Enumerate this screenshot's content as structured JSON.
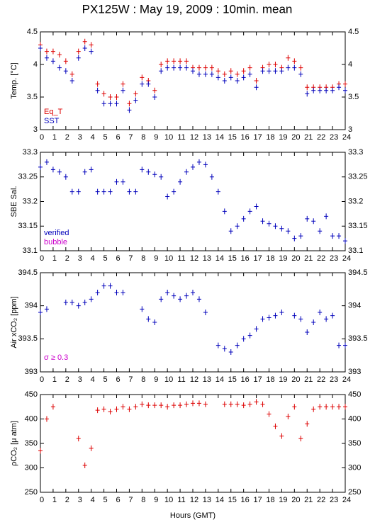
{
  "chart_data": [
    {
      "type": "scatter",
      "title": "PX125W : May 19, 2009 : 10min. mean",
      "ylabel": "Temp. [°C]",
      "xlim": [
        0,
        24
      ],
      "xticks": [
        0,
        1,
        2,
        3,
        4,
        5,
        6,
        7,
        8,
        9,
        10,
        11,
        12,
        13,
        14,
        15,
        16,
        17,
        18,
        19,
        20,
        21,
        22,
        23,
        24
      ],
      "ylim": [
        3,
        4.5
      ],
      "yticks": [
        3,
        3.5,
        4,
        4.5
      ],
      "x": [
        0,
        0.5,
        1,
        1.5,
        2,
        2.5,
        3,
        3.5,
        4,
        4.5,
        5,
        5.5,
        6,
        6.5,
        7,
        7.5,
        8,
        8.5,
        9,
        9.5,
        10,
        10.5,
        11,
        11.5,
        12,
        12.5,
        13,
        13.5,
        14,
        14.5,
        15,
        15.5,
        16,
        16.5,
        17,
        17.5,
        18,
        18.5,
        19,
        19.5,
        20,
        20.5,
        21,
        21.5,
        22,
        22.5,
        23,
        23.5,
        24
      ],
      "series": [
        {
          "name": "Eq_T",
          "color": "#dd0000",
          "values": [
            4.3,
            4.2,
            4.2,
            4.15,
            4.05,
            3.85,
            4.2,
            4.35,
            4.3,
            3.7,
            3.55,
            3.5,
            3.5,
            3.7,
            3.4,
            3.55,
            3.8,
            3.75,
            3.6,
            4.0,
            4.05,
            4.05,
            4.05,
            4.05,
            3.95,
            3.95,
            3.95,
            3.95,
            3.9,
            3.85,
            3.9,
            3.85,
            3.9,
            3.95,
            3.75,
            3.95,
            4.0,
            4.0,
            3.95,
            4.1,
            4.05,
            3.95,
            3.65,
            3.65,
            3.65,
            3.65,
            3.65,
            3.7,
            3.7
          ]
        },
        {
          "name": "SST",
          "color": "#0000bb",
          "values": [
            4.25,
            4.1,
            4.05,
            3.95,
            3.9,
            3.75,
            4.1,
            4.25,
            4.2,
            3.6,
            3.4,
            3.4,
            3.4,
            3.6,
            3.3,
            3.45,
            3.7,
            3.7,
            3.5,
            3.9,
            3.95,
            3.95,
            3.95,
            3.95,
            3.9,
            3.85,
            3.85,
            3.85,
            3.8,
            3.75,
            3.8,
            3.75,
            3.8,
            3.85,
            3.65,
            3.9,
            3.9,
            3.9,
            3.9,
            3.95,
            3.95,
            3.85,
            3.55,
            3.6,
            3.6,
            3.6,
            3.6,
            3.65,
            3.6
          ]
        }
      ]
    },
    {
      "type": "scatter",
      "ylabel": "SBE Sal.",
      "xlim": [
        0,
        24
      ],
      "xticks": [
        0,
        1,
        2,
        3,
        4,
        5,
        6,
        7,
        8,
        9,
        10,
        11,
        12,
        13,
        14,
        15,
        16,
        17,
        18,
        19,
        20,
        21,
        22,
        23,
        24
      ],
      "ylim": [
        33.1,
        33.3
      ],
      "yticks": [
        33.1,
        33.15,
        33.2,
        33.25,
        33.3
      ],
      "x": [
        0,
        0.5,
        1,
        1.5,
        2,
        2.5,
        3,
        3.5,
        4,
        4.5,
        5,
        5.5,
        6,
        6.5,
        7,
        7.5,
        8,
        8.5,
        9,
        9.5,
        10,
        10.5,
        11,
        11.5,
        12,
        12.5,
        13,
        13.5,
        14,
        14.5,
        15,
        15.5,
        16,
        16.5,
        17,
        17.5,
        18,
        18.5,
        19,
        19.5,
        20,
        20.5,
        21,
        21.5,
        22,
        22.5,
        23,
        23.5,
        24
      ],
      "series": [
        {
          "name": "verified",
          "color": "#0000bb",
          "values": [
            33.27,
            33.28,
            33.265,
            33.26,
            33.25,
            33.22,
            33.22,
            33.26,
            33.265,
            33.22,
            33.22,
            33.22,
            33.24,
            33.24,
            33.22,
            33.22,
            33.265,
            33.26,
            33.255,
            33.25,
            33.21,
            33.22,
            33.24,
            33.26,
            33.27,
            33.28,
            33.275,
            33.25,
            33.22,
            33.18,
            33.14,
            33.15,
            33.165,
            33.18,
            33.19,
            33.16,
            33.155,
            33.15,
            33.145,
            33.14,
            33.125,
            33.13,
            33.165,
            33.16,
            33.14,
            33.17,
            33.13,
            33.13,
            33.12
          ]
        },
        {
          "name": "bubble",
          "color": "#cc00cc",
          "values": [
            null,
            null,
            null,
            null,
            null,
            null,
            null,
            null,
            null,
            null,
            null,
            null,
            null,
            null,
            null,
            null,
            null,
            null,
            null,
            null,
            null,
            null,
            null,
            null,
            null,
            null,
            null,
            null,
            null,
            null,
            null,
            null,
            null,
            null,
            null,
            null,
            null,
            null,
            null,
            null,
            null,
            null,
            null,
            null,
            null,
            null,
            null,
            null,
            null
          ]
        }
      ]
    },
    {
      "type": "scatter",
      "ylabel": "Air xCO₂ [ppm]",
      "annotation": "σ ≥ 0.3",
      "annotation_color": "#cc00cc",
      "xlim": [
        0,
        24
      ],
      "xticks": [
        0,
        1,
        2,
        3,
        4,
        5,
        6,
        7,
        8,
        9,
        10,
        11,
        12,
        13,
        14,
        15,
        16,
        17,
        18,
        19,
        20,
        21,
        22,
        23,
        24
      ],
      "ylim": [
        393,
        394.5
      ],
      "yticks": [
        393,
        393.5,
        394,
        394.5
      ],
      "x": [
        0,
        0.5,
        1,
        1.5,
        2,
        2.5,
        3,
        3.5,
        4,
        4.5,
        5,
        5.5,
        6,
        6.5,
        7,
        7.5,
        8,
        8.5,
        9,
        9.5,
        10,
        10.5,
        11,
        11.5,
        12,
        12.5,
        13,
        13.5,
        14,
        14.5,
        15,
        15.5,
        16,
        16.5,
        17,
        17.5,
        18,
        18.5,
        19,
        19.5,
        20,
        20.5,
        21,
        21.5,
        22,
        22.5,
        23,
        23.5,
        24
      ],
      "series": [
        {
          "color": "#0000bb",
          "values": [
            393.9,
            393.95,
            null,
            null,
            394.05,
            394.05,
            394.0,
            394.05,
            394.1,
            394.2,
            394.3,
            394.3,
            394.2,
            394.2,
            null,
            null,
            393.95,
            393.8,
            393.75,
            394.1,
            394.2,
            394.15,
            394.1,
            394.15,
            394.2,
            394.1,
            393.9,
            null,
            393.4,
            393.35,
            393.3,
            393.4,
            393.5,
            393.55,
            393.65,
            393.8,
            393.82,
            393.85,
            393.9,
            null,
            393.85,
            393.8,
            393.6,
            393.75,
            393.9,
            393.8,
            393.85,
            393.4,
            393.4
          ]
        }
      ]
    },
    {
      "type": "scatter",
      "ylabel": "ρCO₂ [μ atm]",
      "xlabel": "Hours (GMT)",
      "xlim": [
        0,
        24
      ],
      "xticks": [
        0,
        1,
        2,
        3,
        4,
        5,
        6,
        7,
        8,
        9,
        10,
        11,
        12,
        13,
        14,
        15,
        16,
        17,
        18,
        19,
        20,
        21,
        22,
        23,
        24
      ],
      "ylim": [
        250,
        450
      ],
      "yticks": [
        250,
        300,
        350,
        400,
        450
      ],
      "x": [
        0,
        0.5,
        1,
        1.5,
        2,
        2.5,
        3,
        3.5,
        4,
        4.5,
        5,
        5.5,
        6,
        6.5,
        7,
        7.5,
        8,
        8.5,
        9,
        9.5,
        10,
        10.5,
        11,
        11.5,
        12,
        12.5,
        13,
        13.5,
        14,
        14.5,
        15,
        15.5,
        16,
        16.5,
        17,
        17.5,
        18,
        18.5,
        19,
        19.5,
        20,
        20.5,
        21,
        21.5,
        22,
        22.5,
        23,
        23.5,
        24
      ],
      "series": [
        {
          "color": "#dd0000",
          "values": [
            335,
            400,
            425,
            null,
            null,
            null,
            360,
            305,
            340,
            418,
            420,
            415,
            420,
            425,
            420,
            425,
            430,
            428,
            428,
            428,
            425,
            428,
            428,
            430,
            432,
            432,
            430,
            null,
            null,
            430,
            430,
            430,
            428,
            430,
            435,
            430,
            410,
            385,
            365,
            405,
            425,
            360,
            390,
            420,
            425,
            425,
            425,
            425,
            425
          ]
        }
      ]
    }
  ]
}
